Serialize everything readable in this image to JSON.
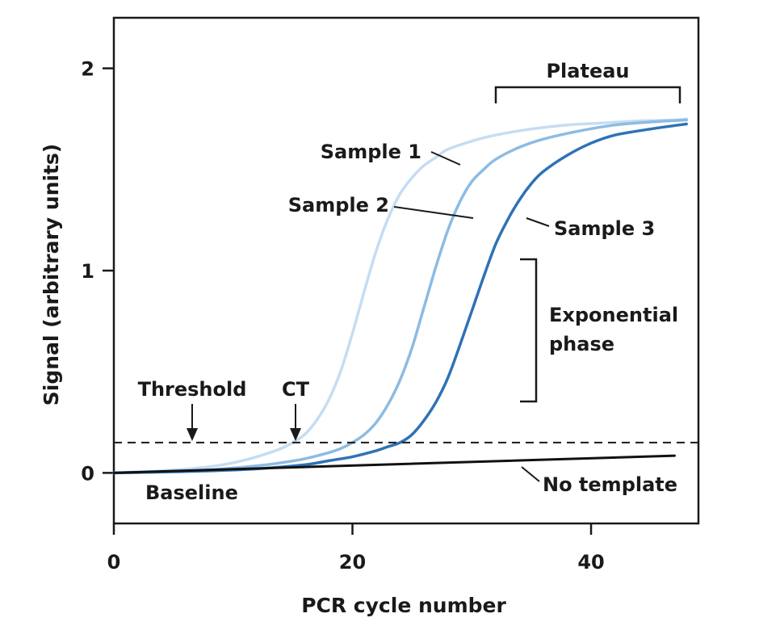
{
  "chart_data": {
    "type": "line",
    "xlabel": "PCR cycle number",
    "ylabel": "Signal (arbitrary units)",
    "xlim": [
      0,
      49
    ],
    "ylim": [
      -0.25,
      2.25
    ],
    "x_ticks": [
      0,
      20,
      40
    ],
    "y_ticks": [
      0,
      1,
      2
    ],
    "grid": false,
    "threshold": 0.15,
    "series": [
      {
        "name": "Sample 1",
        "color": "#c5ddf2",
        "x": [
          0,
          4,
          8,
          10,
          12,
          14,
          15,
          16,
          17,
          18,
          19,
          20,
          21,
          22,
          23,
          24,
          25,
          26,
          27,
          28,
          30,
          32,
          35,
          38,
          41,
          44,
          47,
          48
        ],
        "y": [
          0,
          0.01,
          0.03,
          0.05,
          0.08,
          0.12,
          0.15,
          0.19,
          0.26,
          0.36,
          0.5,
          0.69,
          0.9,
          1.1,
          1.26,
          1.38,
          1.46,
          1.52,
          1.56,
          1.6,
          1.64,
          1.67,
          1.7,
          1.72,
          1.73,
          1.74,
          1.745,
          1.75
        ]
      },
      {
        "name": "Sample 2",
        "color": "#8dbbe2",
        "x": [
          0,
          4,
          8,
          12,
          14,
          16,
          18,
          19,
          20,
          21,
          22,
          23,
          24,
          25,
          26,
          27,
          28,
          29,
          30,
          31,
          32,
          34,
          36,
          39,
          42,
          45,
          48
        ],
        "y": [
          0,
          0.005,
          0.015,
          0.035,
          0.05,
          0.07,
          0.1,
          0.12,
          0.15,
          0.19,
          0.25,
          0.34,
          0.46,
          0.62,
          0.82,
          1.02,
          1.2,
          1.34,
          1.44,
          1.5,
          1.55,
          1.61,
          1.65,
          1.69,
          1.72,
          1.735,
          1.745
        ]
      },
      {
        "name": "Sample 3",
        "color": "#2e72b6",
        "x": [
          0,
          4,
          8,
          12,
          16,
          18,
          20,
          22,
          23,
          24,
          25,
          26,
          27,
          28,
          29,
          30,
          31,
          32,
          33,
          34,
          35,
          36,
          38,
          40,
          42,
          45,
          48
        ],
        "y": [
          0,
          0.004,
          0.01,
          0.02,
          0.04,
          0.06,
          0.08,
          0.11,
          0.13,
          0.15,
          0.19,
          0.26,
          0.35,
          0.47,
          0.63,
          0.8,
          0.97,
          1.13,
          1.25,
          1.35,
          1.43,
          1.49,
          1.57,
          1.63,
          1.67,
          1.7,
          1.725
        ]
      },
      {
        "name": "No template",
        "color": "#111111",
        "x": [
          0,
          47
        ],
        "y": [
          0,
          0.085
        ]
      }
    ],
    "annotations": [
      {
        "text": "Plateau"
      },
      {
        "text": "Sample 1"
      },
      {
        "text": "Sample 2"
      },
      {
        "text": "Sample 3"
      },
      {
        "text": "Exponential"
      },
      {
        "text": "phase"
      },
      {
        "text": "Threshold"
      },
      {
        "text": "CT"
      },
      {
        "text": "Baseline"
      },
      {
        "text": "No template"
      }
    ]
  }
}
